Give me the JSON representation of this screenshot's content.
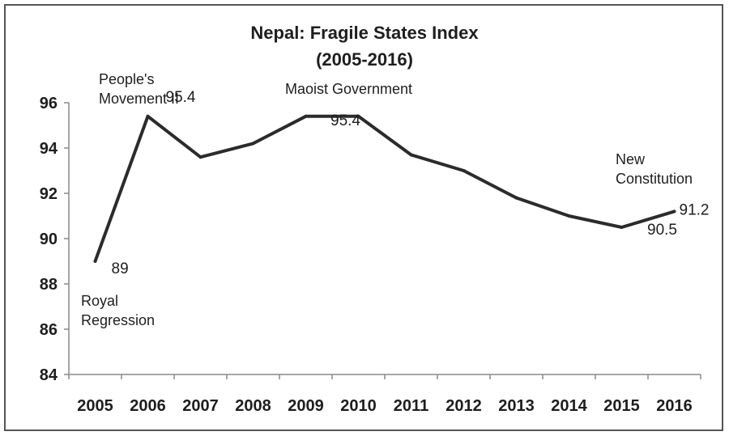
{
  "chart_data": {
    "type": "line",
    "title": "Nepal: Fragile States Index",
    "subtitle": "(2005-2016)",
    "xlabel": "",
    "ylabel": "",
    "x": [
      "2005",
      "2006",
      "2007",
      "2008",
      "2009",
      "2010",
      "2011",
      "2012",
      "2013",
      "2014",
      "2015",
      "2016"
    ],
    "series": [
      {
        "values": [
          89.0,
          95.4,
          93.6,
          94.2,
          95.4,
          95.4,
          93.7,
          93.0,
          91.8,
          91.0,
          90.5,
          91.2
        ]
      }
    ],
    "ylim": [
      84,
      96
    ],
    "yticks": [
      "84",
      "86",
      "88",
      "90",
      "92",
      "94",
      "96"
    ],
    "grid": false,
    "legend": "none",
    "line_color": "#2b2b2b",
    "data_labels": [
      {
        "index": 0,
        "text": "89"
      },
      {
        "index": 1,
        "text": "95.4"
      },
      {
        "index": 5,
        "text": "95.4"
      },
      {
        "index": 10,
        "text": "90.5"
      },
      {
        "index": 11,
        "text": "91.2"
      }
    ],
    "annotations": [
      {
        "index": 0,
        "lines": [
          "Royal",
          "Regression"
        ]
      },
      {
        "index": 1,
        "lines": [
          "People's",
          "Movement II"
        ]
      },
      {
        "index": 4,
        "lines": [
          "Maoist Government"
        ]
      },
      {
        "index": 11,
        "lines": [
          "New",
          "Constitution"
        ]
      }
    ]
  }
}
